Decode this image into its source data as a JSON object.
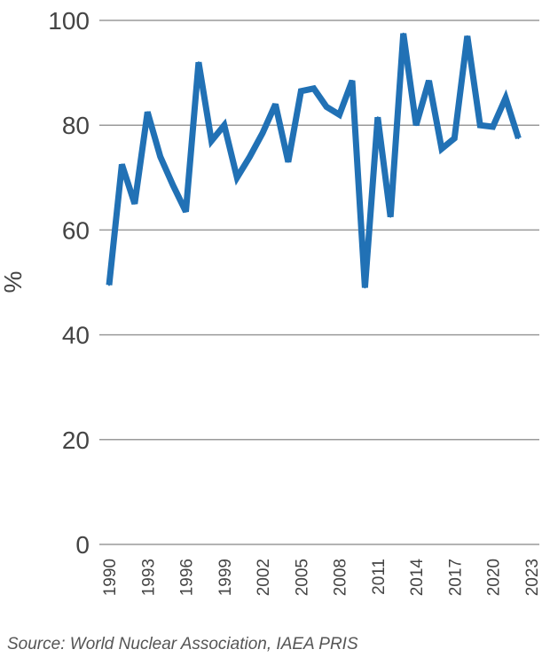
{
  "chart_data": {
    "type": "line",
    "ylabel": "%",
    "ylim": [
      0,
      100
    ],
    "yticks": [
      0,
      20,
      40,
      60,
      80,
      100
    ],
    "xlim": [
      1990,
      2023
    ],
    "xtick_labels": [
      "1990",
      "1993",
      "1996",
      "1999",
      "2002",
      "2005",
      "2008",
      "2011",
      "2014",
      "2017",
      "2020",
      "2023"
    ],
    "grid": true,
    "line_color": "#2171b5",
    "series": [
      {
        "x": [
          1990,
          1991,
          1992,
          1993,
          1994,
          1995,
          1996,
          1997,
          1998,
          1999,
          2000,
          2001,
          2002,
          2003,
          2004,
          2005,
          2006,
          2007,
          2008,
          2009,
          2010,
          2011,
          2012,
          2013,
          2014,
          2015,
          2016,
          2017,
          2018,
          2019,
          2020,
          2021,
          2022
        ],
        "values": [
          49.5,
          72.5,
          65,
          82.5,
          74,
          68.5,
          63.5,
          92,
          77,
          80,
          70,
          74,
          78.5,
          84,
          73,
          86.5,
          87,
          83.5,
          82,
          88.5,
          49,
          81.5,
          62.5,
          97.5,
          80,
          88.5,
          75.5,
          77.5,
          97,
          80,
          79.7,
          85.2,
          77.5
        ]
      }
    ]
  },
  "source": "Source: World Nuclear Association, IAEA PRIS"
}
